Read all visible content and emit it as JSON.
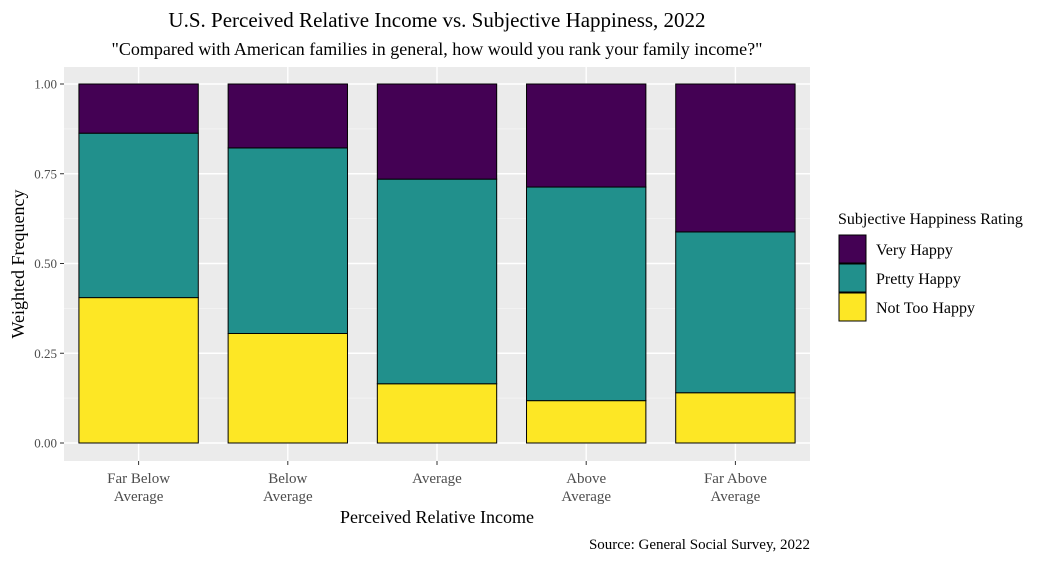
{
  "chart_data": {
    "type": "bar",
    "stacked": true,
    "title": "U.S. Perceived Relative Income vs. Subjective Happiness, 2022",
    "subtitle": "\"Compared with American families in general, how would you rank your family income?\"",
    "xlabel": "Perceived Relative Income",
    "ylabel": "Weighted Frequency",
    "caption": "Source: General Social Survey, 2022",
    "ylim": [
      0,
      1
    ],
    "yticks": [
      "0.00",
      "0.25",
      "0.50",
      "0.75",
      "1.00"
    ],
    "grid": true,
    "legend_title": "Subjective Happiness Rating",
    "legend_position": "right",
    "categories": [
      [
        "Far Below",
        "Average"
      ],
      [
        "Below",
        "Average"
      ],
      [
        "Average"
      ],
      [
        "Above",
        "Average"
      ],
      [
        "Far Above",
        "Average"
      ]
    ],
    "series": [
      {
        "name": "Not Too Happy",
        "color": "#fde725",
        "values": [
          0.405,
          0.305,
          0.165,
          0.118,
          0.14
        ]
      },
      {
        "name": "Pretty Happy",
        "color": "#21908c",
        "values": [
          0.458,
          0.517,
          0.57,
          0.595,
          0.448
        ]
      },
      {
        "name": "Very Happy",
        "color": "#440154",
        "values": [
          0.137,
          0.178,
          0.265,
          0.287,
          0.412
        ]
      }
    ],
    "legend_order": [
      "Very Happy",
      "Pretty Happy",
      "Not Too Happy"
    ]
  }
}
